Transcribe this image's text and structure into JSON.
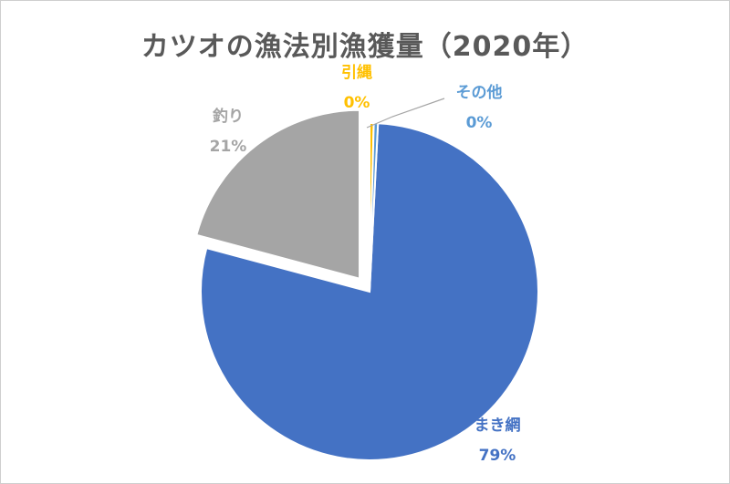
{
  "chart_data": {
    "type": "pie",
    "title": "カツオの漁法別漁獲量（2020年）",
    "slices": [
      {
        "label": "まき網",
        "value": 79,
        "display": "79%",
        "color": "#4472c4",
        "label_color": "#4472c4"
      },
      {
        "label": "釣り",
        "value": 21,
        "display": "21%",
        "color": "#a5a5a5",
        "label_color": "#a5a5a5",
        "exploded": true
      },
      {
        "label": "引縄",
        "value": 0.4,
        "display": "0%",
        "color": "#ffc000",
        "label_color": "#ffc000"
      },
      {
        "label": "その他",
        "value": 0.4,
        "display": "0%",
        "color": "#5b9bd5",
        "label_color": "#5b9bd5"
      }
    ],
    "start_angle": "12 o'clock",
    "direction": "clockwise",
    "legend": "none"
  }
}
